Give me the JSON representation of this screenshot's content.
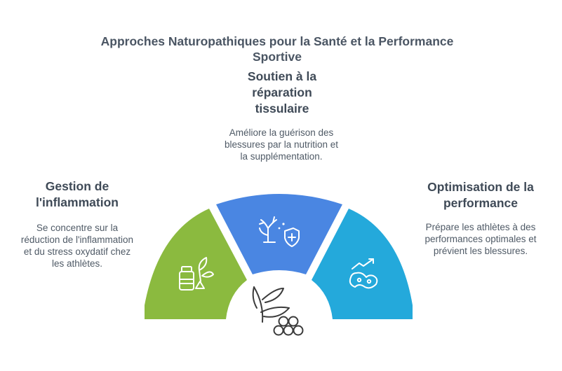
{
  "title": "Approches Naturopathiques pour la Santé et la Performance Sportive",
  "sections": {
    "top": {
      "heading": "Soutien à la réparation tissulaire",
      "description": "Améliore la guérison des blessures par la nutrition et la supplémentation.",
      "color": "#4a86e2",
      "icon": "tissue-repair-shield-icon"
    },
    "left": {
      "heading": "Gestion de l'inflammation",
      "description": "Se concentre sur la réduction de l'inflammation et du stress oxydatif chez les athlètes.",
      "color": "#8bba3f",
      "icon": "supplements-herbs-icon"
    },
    "right": {
      "heading": "Optimisation de la performance",
      "description": "Prépare les athlètes à des performances optimales et prévient les blessures.",
      "color": "#24a9db",
      "icon": "performance-trend-icon"
    }
  },
  "center": {
    "icon": "leaves-berries-icon"
  }
}
